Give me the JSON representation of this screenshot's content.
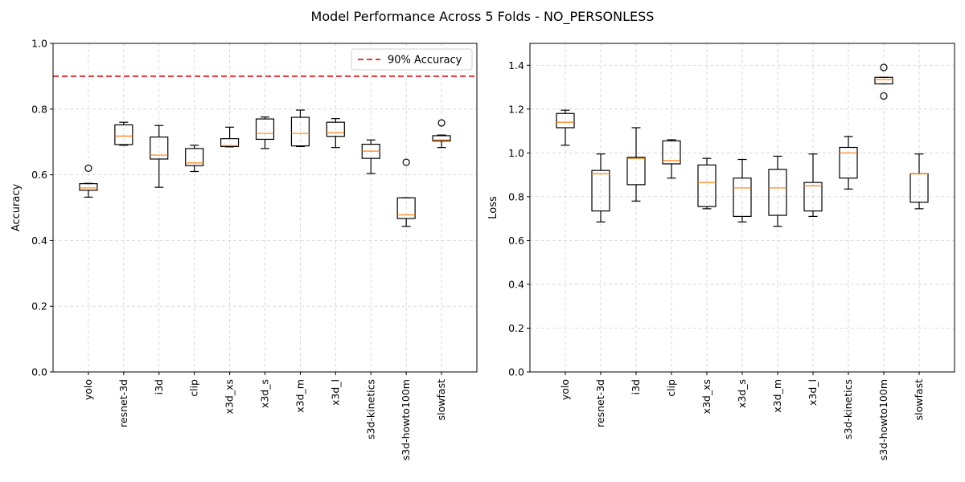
{
  "figure": {
    "suptitle": "Model Performance Across 5 Folds - NO_PERSONLESS"
  },
  "chart_data": [
    {
      "type": "box",
      "id": "accuracy",
      "title": "",
      "xlabel": "",
      "ylabel": "Accuracy",
      "ylim": [
        0.0,
        1.0
      ],
      "yticks": [
        "0.0",
        "0.2",
        "0.4",
        "0.6",
        "0.8",
        "1.0"
      ],
      "ytick_values": [
        0.0,
        0.2,
        0.4,
        0.6,
        0.8,
        1.0
      ],
      "grid": true,
      "legend": {
        "position": "top-right",
        "entries": [
          "90% Accuracy"
        ]
      },
      "reference_line": {
        "value": 0.9,
        "label": "90% Accuracy",
        "color": "#e31a1c",
        "style": "dashed"
      },
      "categories": [
        "yolo",
        "resnet-3d",
        "i3d",
        "clip",
        "x3d_xs",
        "x3d_s",
        "x3d_m",
        "x3d_l",
        "s3d-kinetics",
        "s3d-howto100m",
        "slowfast"
      ],
      "boxes": [
        {
          "whislo": 0.532,
          "q1": 0.553,
          "med": 0.56,
          "q3": 0.573,
          "whishi": 0.574,
          "fliers": [
            0.62
          ]
        },
        {
          "whislo": 0.69,
          "q1": 0.692,
          "med": 0.718,
          "q3": 0.752,
          "whishi": 0.76,
          "fliers": []
        },
        {
          "whislo": 0.562,
          "q1": 0.648,
          "med": 0.66,
          "q3": 0.715,
          "whishi": 0.75,
          "fliers": []
        },
        {
          "whislo": 0.61,
          "q1": 0.628,
          "med": 0.636,
          "q3": 0.68,
          "whishi": 0.69,
          "fliers": []
        },
        {
          "whislo": 0.685,
          "q1": 0.686,
          "med": 0.689,
          "q3": 0.71,
          "whishi": 0.745,
          "fliers": []
        },
        {
          "whislo": 0.68,
          "q1": 0.708,
          "med": 0.726,
          "q3": 0.77,
          "whishi": 0.776,
          "fliers": []
        },
        {
          "whislo": 0.686,
          "q1": 0.688,
          "med": 0.726,
          "q3": 0.775,
          "whishi": 0.797,
          "fliers": []
        },
        {
          "whislo": 0.683,
          "q1": 0.717,
          "med": 0.728,
          "q3": 0.76,
          "whishi": 0.771,
          "fliers": []
        },
        {
          "whislo": 0.604,
          "q1": 0.65,
          "med": 0.672,
          "q3": 0.693,
          "whishi": 0.706,
          "fliers": []
        },
        {
          "whislo": 0.443,
          "q1": 0.467,
          "med": 0.478,
          "q3": 0.53,
          "whishi": 0.53,
          "fliers": [
            0.638
          ]
        },
        {
          "whislo": 0.683,
          "q1": 0.703,
          "med": 0.706,
          "q3": 0.719,
          "whishi": 0.721,
          "fliers": [
            0.758
          ]
        }
      ]
    },
    {
      "type": "box",
      "id": "loss",
      "title": "",
      "xlabel": "",
      "ylabel": "Loss",
      "ylim": [
        0.0,
        1.5
      ],
      "yticks": [
        "0.0",
        "0.2",
        "0.4",
        "0.6",
        "0.8",
        "1.0",
        "1.2",
        "1.4"
      ],
      "ytick_values": [
        0.0,
        0.2,
        0.4,
        0.6,
        0.8,
        1.0,
        1.2,
        1.4
      ],
      "grid": true,
      "categories": [
        "yolo",
        "resnet-3d",
        "i3d",
        "clip",
        "x3d_xs",
        "x3d_s",
        "x3d_m",
        "x3d_l",
        "s3d-kinetics",
        "s3d-howto100m",
        "slowfast"
      ],
      "boxes": [
        {
          "whislo": 1.035,
          "q1": 1.115,
          "med": 1.14,
          "q3": 1.18,
          "whishi": 1.195,
          "fliers": []
        },
        {
          "whislo": 0.685,
          "q1": 0.735,
          "med": 0.905,
          "q3": 0.92,
          "whishi": 0.995,
          "fliers": []
        },
        {
          "whislo": 0.78,
          "q1": 0.855,
          "med": 0.975,
          "q3": 0.98,
          "whishi": 1.115,
          "fliers": []
        },
        {
          "whislo": 0.885,
          "q1": 0.95,
          "med": 0.965,
          "q3": 1.055,
          "whishi": 1.06,
          "fliers": []
        },
        {
          "whislo": 0.745,
          "q1": 0.755,
          "med": 0.865,
          "q3": 0.945,
          "whishi": 0.975,
          "fliers": []
        },
        {
          "whislo": 0.685,
          "q1": 0.71,
          "med": 0.84,
          "q3": 0.885,
          "whishi": 0.97,
          "fliers": []
        },
        {
          "whislo": 0.665,
          "q1": 0.715,
          "med": 0.84,
          "q3": 0.925,
          "whishi": 0.985,
          "fliers": []
        },
        {
          "whislo": 0.71,
          "q1": 0.735,
          "med": 0.85,
          "q3": 0.865,
          "whishi": 0.995,
          "fliers": []
        },
        {
          "whislo": 0.835,
          "q1": 0.885,
          "med": 1.0,
          "q3": 1.025,
          "whishi": 1.075,
          "fliers": []
        },
        {
          "whislo": 1.315,
          "q1": 1.315,
          "med": 1.335,
          "q3": 1.345,
          "whishi": 1.345,
          "fliers": [
            1.39,
            1.26
          ]
        },
        {
          "whislo": 0.745,
          "q1": 0.775,
          "med": 0.905,
          "q3": 0.905,
          "whishi": 0.995,
          "fliers": []
        }
      ]
    }
  ],
  "colors": {
    "box": "#000000",
    "median": "#ff7f0e",
    "grid": "#d3d3d3",
    "reference": "#e31a1c"
  }
}
